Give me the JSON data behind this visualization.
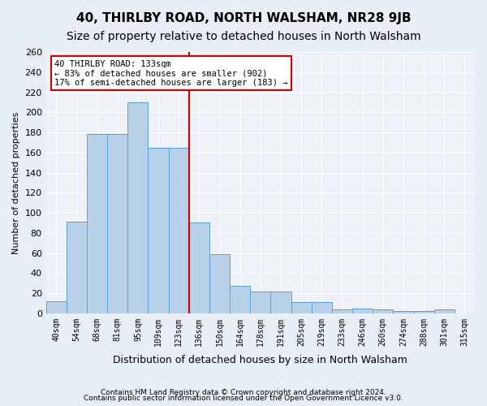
{
  "title": "40, THIRLBY ROAD, NORTH WALSHAM, NR28 9JB",
  "subtitle": "Size of property relative to detached houses in North Walsham",
  "xlabel": "Distribution of detached houses by size in North Walsham",
  "ylabel": "Number of detached properties",
  "categories": [
    "40sqm",
    "54sqm",
    "68sqm",
    "81sqm",
    "95sqm",
    "109sqm",
    "123sqm",
    "136sqm",
    "150sqm",
    "164sqm",
    "178sqm",
    "191sqm",
    "205sqm",
    "219sqm",
    "233sqm",
    "246sqm",
    "260sqm",
    "274sqm",
    "288sqm",
    "301sqm",
    "315sqm"
  ],
  "values": [
    12,
    91,
    178,
    178,
    210,
    165,
    165,
    90,
    59,
    27,
    22,
    22,
    11,
    11,
    4,
    5,
    4,
    2,
    2,
    4,
    0
  ],
  "bar_color": "#b8d0e8",
  "bar_edge_color": "#5a9fd4",
  "vline_x_index": 7,
  "vline_color": "#cc0000",
  "annotation_text": "40 THIRLBY ROAD: 133sqm\n← 83% of detached houses are smaller (902)\n17% of semi-detached houses are larger (183) →",
  "annotation_box_color": "#ffffff",
  "annotation_box_edge_color": "#cc0000",
  "ylim": [
    0,
    260
  ],
  "yticks": [
    0,
    20,
    40,
    60,
    80,
    100,
    120,
    140,
    160,
    180,
    200,
    220,
    240,
    260
  ],
  "footer1": "Contains HM Land Registry data © Crown copyright and database right 2024.",
  "footer2": "Contains public sector information licensed under the Open Government Licence v3.0.",
  "bg_color": "#e8eef5",
  "plot_bg_color": "#eef2f8",
  "title_fontsize": 11,
  "subtitle_fontsize": 10,
  "grid_color": "#ffffff"
}
